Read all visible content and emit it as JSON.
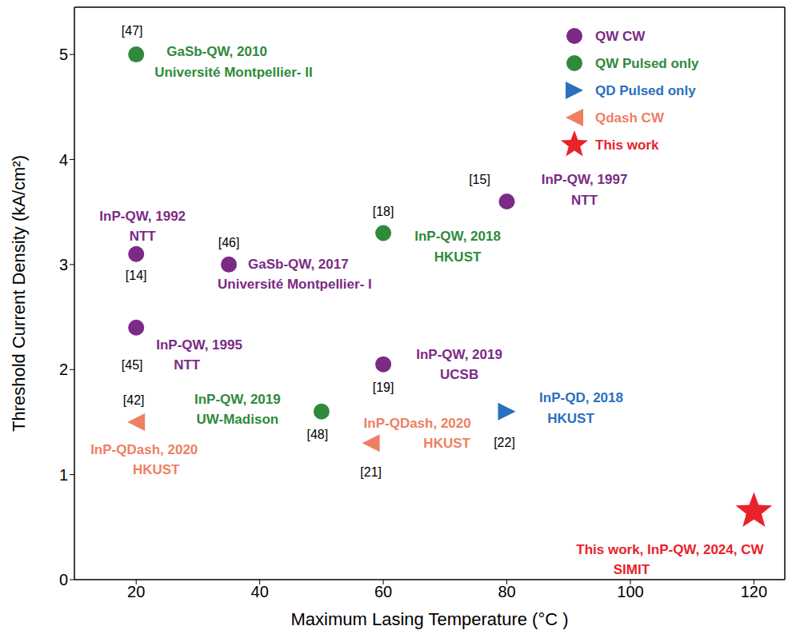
{
  "chart_data": {
    "type": "scatter",
    "x_label": "Maximum Lasing Temperature (°C )",
    "y_label": "Threshold Current Density (kA/cm²)",
    "xlim": [
      10,
      125
    ],
    "xticks": [
      20,
      40,
      60,
      80,
      100,
      120
    ],
    "ylim": [
      0,
      5.45
    ],
    "yticks": [
      0,
      1,
      2,
      3,
      4,
      5
    ],
    "grid": false,
    "legend": "upper right",
    "series": [
      {
        "name": "QW CW",
        "color": "#7b2a86",
        "marker": "circle",
        "x": [
          80,
          20,
          35,
          20,
          60
        ],
        "y": [
          3.6,
          3.1,
          3.0,
          2.4,
          2.05
        ],
        "refs": [
          "[15]",
          "[14]",
          "[46]",
          "[45]",
          "[19]"
        ],
        "labels": [
          [
            "InP-QW, 1997",
            "NTT"
          ],
          [
            "InP-QW, 1992",
            "NTT"
          ],
          [
            "GaSb-QW, 2017",
            "Université Montpellier- I"
          ],
          [
            "InP-QW, 1995",
            "NTT"
          ],
          [
            "InP-QW, 2019",
            "UCSB"
          ]
        ]
      },
      {
        "name": "QW Pulsed only",
        "color": "#2f8a3c",
        "marker": "circle",
        "x": [
          20,
          60,
          50
        ],
        "y": [
          5.0,
          3.3,
          1.6
        ],
        "refs": [
          "[47]",
          "[18]",
          "[48]"
        ],
        "labels": [
          [
            "GaSb-QW, 2010",
            "Université Montpellier- II"
          ],
          [
            "InP-QW, 2018",
            "HKUST"
          ],
          [
            "InP-QW, 2019",
            "UW-Madison"
          ]
        ]
      },
      {
        "name": "QD Pulsed only",
        "color": "#2a6fc0",
        "marker": "triangle-right",
        "x": [
          80
        ],
        "y": [
          1.6
        ],
        "refs": [
          "[22]"
        ],
        "labels": [
          [
            "InP-QD, 2018",
            "HKUST"
          ]
        ]
      },
      {
        "name": "Qdash CW",
        "color": "#ef7f62",
        "marker": "triangle-left",
        "x": [
          20,
          58
        ],
        "y": [
          1.5,
          1.3
        ],
        "refs": [
          "[42]",
          "[21]"
        ],
        "labels": [
          [
            "InP-QDash, 2020",
            "HKUST"
          ],
          [
            "InP-QDash, 2020",
            "HKUST"
          ]
        ]
      },
      {
        "name": "This work",
        "color": "#e8232a",
        "marker": "star",
        "x": [
          120
        ],
        "y": [
          0.65
        ],
        "labels": [
          [
            "This work, InP-QW, 2024, CW",
            "SIMIT"
          ]
        ]
      }
    ]
  }
}
